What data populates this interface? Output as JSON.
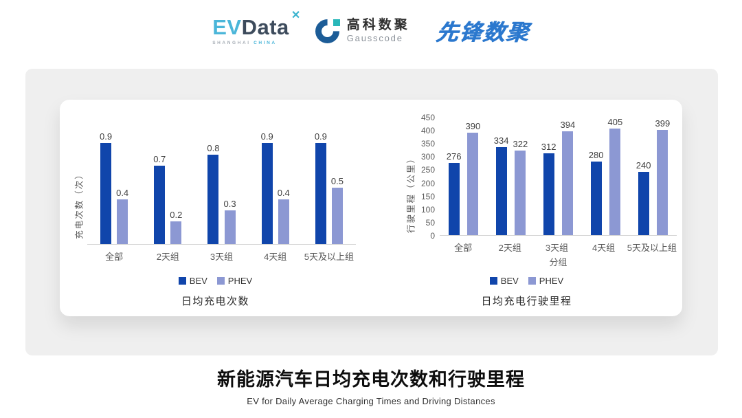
{
  "header": {
    "logos": {
      "evdata": {
        "ev": "EV",
        "data": "Data",
        "mark": "✕",
        "sub_left": "SHANGHAI",
        "sub_right": "CHINA"
      },
      "gausscode": {
        "cn": "高科数聚",
        "en": "Gausscode"
      },
      "pioneer": {
        "text": "先锋数聚"
      }
    }
  },
  "chart_data": [
    {
      "type": "bar",
      "title": "日均充电次数",
      "ylabel": "充电次数（次）",
      "xlabel": "",
      "categories": [
        "全部",
        "2天组",
        "3天组",
        "4天组",
        "5天及以上组"
      ],
      "series": [
        {
          "name": "BEV",
          "values": [
            0.9,
            0.7,
            0.8,
            0.9,
            0.9
          ]
        },
        {
          "name": "PHEV",
          "values": [
            0.4,
            0.2,
            0.3,
            0.4,
            0.5
          ]
        }
      ],
      "ylim": [
        0,
        1
      ],
      "yticks": [],
      "grid": false,
      "legend_position": "bottom",
      "data_labels": true
    },
    {
      "type": "bar",
      "title": "日均充电行驶里程",
      "ylabel": "行驶里程（公里）",
      "xlabel": "分组",
      "categories": [
        "全部",
        "2天组",
        "3天组",
        "4天组",
        "5天及以上组"
      ],
      "series": [
        {
          "name": "BEV",
          "values": [
            276,
            334,
            312,
            280,
            240
          ]
        },
        {
          "name": "PHEV",
          "values": [
            390,
            322,
            394,
            405,
            399
          ]
        }
      ],
      "ylim": [
        0,
        450
      ],
      "yticks": [
        450,
        400,
        350,
        300,
        250,
        200,
        150,
        100,
        50,
        0
      ],
      "grid": false,
      "legend_position": "bottom",
      "data_labels": true
    }
  ],
  "footer": {
    "title": "新能源汽车日均充电次数和行驶里程",
    "subtitle": "EV for Daily Average Charging Times and Driving Distances"
  },
  "colors": {
    "BEV": "#1045AB",
    "PHEV": "#8C98D3"
  }
}
